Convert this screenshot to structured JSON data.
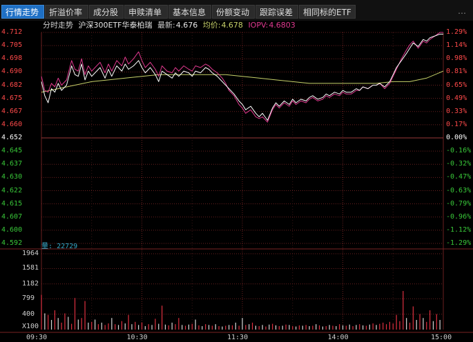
{
  "tabs": [
    {
      "label": "行情走势",
      "active": true
    },
    {
      "label": "折溢价率",
      "active": false
    },
    {
      "label": "成分股",
      "active": false
    },
    {
      "label": "申赎清单",
      "active": false
    },
    {
      "label": "基本信息",
      "active": false
    },
    {
      "label": "份额变动",
      "active": false
    },
    {
      "label": "跟踪误差",
      "active": false
    },
    {
      "label": "相同标的ETF",
      "active": false
    }
  ],
  "more_symbol": "…",
  "info": {
    "mode": "分时走势",
    "name": "沪深300ETF华泰柏瑞",
    "latest_label": "最新:",
    "latest_value": "4.676",
    "avg_label": "均价:",
    "avg_value": "4.678",
    "iopv_label": "IOPV:",
    "iopv_value": "4.6803"
  },
  "volume_label": "量:",
  "volume_value": "22729",
  "colors": {
    "up": "#ff4a4a",
    "down": "#39c839",
    "flat": "#ffffff",
    "price": "#ffffff",
    "iopv": "#e0398f",
    "avg": "#c8d26a",
    "grid": "#6b2020",
    "volume_up": "#e03040",
    "volume_down": "#d8d8d8"
  },
  "chart_data": {
    "type": "line",
    "price_axis": {
      "ticks": [
        "4.712",
        "4.705",
        "4.698",
        "4.690",
        "4.682",
        "4.675",
        "4.667",
        "4.660",
        "4.652",
        "4.645",
        "4.637",
        "4.630",
        "4.622",
        "4.615",
        "4.607",
        "4.600",
        "4.592"
      ],
      "prev_close": 4.652,
      "ylim": [
        4.592,
        4.712
      ]
    },
    "percent_axis": {
      "ticks": [
        "1.29%",
        "1.14%",
        "0.98%",
        "0.81%",
        "0.65%",
        "0.49%",
        "0.33%",
        "0.17%",
        "0.00%",
        "-0.16%",
        "-0.32%",
        "-0.47%",
        "-0.63%",
        "-0.79%",
        "-0.96%",
        "-1.12%",
        "-1.29%"
      ]
    },
    "time_ticks": [
      "09:30",
      "10:30",
      "11:30",
      "14:00",
      "15:00"
    ],
    "volume_axis": {
      "ticks": [
        "1964",
        "1581",
        "1182",
        "799",
        "400",
        "X100"
      ],
      "ylim": [
        0,
        1964
      ]
    },
    "series": [
      {
        "name": "最新",
        "t": [
          0,
          2,
          4,
          6,
          8,
          10,
          12,
          15,
          18,
          20,
          22,
          24,
          26,
          28,
          30,
          32,
          35,
          38,
          40,
          42,
          45,
          48,
          50,
          52,
          55,
          58,
          60,
          62,
          65,
          68,
          70,
          72,
          75,
          78,
          80,
          82,
          85,
          88,
          90,
          92,
          95,
          98,
          100,
          102,
          105,
          108,
          110,
          112,
          115,
          118,
          120,
          122,
          125,
          128,
          130,
          132,
          135,
          138,
          140,
          142,
          145,
          148,
          150,
          152,
          155,
          158,
          160,
          162,
          165,
          168,
          170,
          172,
          175,
          178,
          180,
          182,
          185,
          188,
          190,
          192,
          195,
          198,
          200,
          202,
          205,
          208,
          210,
          212,
          215,
          218,
          220,
          222,
          225,
          228,
          230,
          232,
          235,
          238,
          240
        ],
        "values": [
          4.684,
          4.676,
          4.672,
          4.68,
          4.678,
          4.683,
          4.679,
          4.682,
          4.693,
          4.688,
          4.687,
          4.694,
          4.685,
          4.69,
          4.687,
          4.689,
          4.692,
          4.686,
          4.691,
          4.687,
          4.693,
          4.69,
          4.694,
          4.691,
          4.693,
          4.696,
          4.692,
          4.689,
          4.692,
          4.688,
          4.684,
          4.69,
          4.688,
          4.686,
          4.689,
          4.687,
          4.69,
          4.689,
          4.687,
          4.69,
          4.689,
          4.692,
          4.691,
          4.689,
          4.687,
          4.684,
          4.682,
          4.68,
          4.677,
          4.673,
          4.671,
          4.668,
          4.67,
          4.666,
          4.664,
          4.666,
          4.662,
          4.669,
          4.672,
          4.67,
          4.673,
          4.671,
          4.674,
          4.672,
          4.674,
          4.673,
          4.675,
          4.676,
          4.674,
          4.675,
          4.677,
          4.676,
          4.678,
          4.677,
          4.679,
          4.678,
          4.678,
          4.68,
          4.679,
          4.681,
          4.68,
          4.682,
          4.682,
          4.683,
          4.681,
          4.684,
          4.688,
          4.692,
          4.696,
          4.7,
          4.703,
          4.706,
          4.704,
          4.708,
          4.707,
          4.709,
          4.71,
          4.711,
          4.711
        ]
      },
      {
        "name": "均价",
        "t": [
          0,
          10,
          20,
          30,
          40,
          50,
          60,
          70,
          80,
          90,
          100,
          110,
          120,
          130,
          140,
          150,
          160,
          170,
          180,
          190,
          200,
          210,
          220,
          230,
          240
        ],
        "values": [
          4.678,
          4.68,
          4.682,
          4.684,
          4.685,
          4.686,
          4.687,
          4.688,
          4.688,
          4.688,
          4.688,
          4.688,
          4.687,
          4.686,
          4.685,
          4.684,
          4.683,
          4.683,
          4.683,
          4.683,
          4.683,
          4.684,
          4.684,
          4.686,
          4.69
        ]
      },
      {
        "name": "IOPV",
        "t": [
          0,
          2,
          4,
          6,
          8,
          10,
          12,
          15,
          18,
          20,
          22,
          24,
          26,
          28,
          30,
          32,
          35,
          38,
          40,
          42,
          45,
          48,
          50,
          52,
          55,
          58,
          60,
          62,
          65,
          68,
          70,
          72,
          75,
          78,
          80,
          82,
          85,
          88,
          90,
          92,
          95,
          98,
          100,
          102,
          105,
          108,
          110,
          112,
          115,
          118,
          120,
          122,
          125,
          128,
          130,
          132,
          135,
          138,
          140,
          142,
          145,
          148,
          150,
          152,
          155,
          158,
          160,
          162,
          165,
          168,
          170,
          172,
          175,
          178,
          180,
          182,
          185,
          188,
          190,
          192,
          195,
          198,
          200,
          202,
          205,
          208,
          210,
          212,
          215,
          218,
          220,
          222,
          225,
          228,
          230,
          232,
          235,
          238,
          240
        ],
        "values": [
          4.687,
          4.679,
          4.678,
          4.683,
          4.681,
          4.686,
          4.682,
          4.685,
          4.696,
          4.691,
          4.69,
          4.697,
          4.688,
          4.693,
          4.69,
          4.692,
          4.695,
          4.689,
          4.694,
          4.69,
          4.696,
          4.693,
          4.698,
          4.694,
          4.697,
          4.701,
          4.696,
          4.692,
          4.695,
          4.691,
          4.687,
          4.693,
          4.69,
          4.689,
          4.692,
          4.69,
          4.693,
          4.691,
          4.69,
          4.693,
          4.692,
          4.694,
          4.693,
          4.691,
          4.689,
          4.686,
          4.683,
          4.679,
          4.676,
          4.671,
          4.669,
          4.666,
          4.668,
          4.664,
          4.663,
          4.664,
          4.661,
          4.668,
          4.671,
          4.669,
          4.672,
          4.67,
          4.673,
          4.671,
          4.673,
          4.672,
          4.674,
          4.675,
          4.673,
          4.674,
          4.676,
          4.675,
          4.677,
          4.676,
          4.678,
          4.677,
          4.677,
          4.679,
          4.679,
          4.681,
          4.68,
          4.682,
          4.682,
          4.683,
          4.68,
          4.683,
          4.687,
          4.691,
          4.697,
          4.702,
          4.705,
          4.707,
          4.703,
          4.707,
          4.706,
          4.708,
          4.71,
          4.712,
          4.712
        ]
      }
    ],
    "volume": {
      "t": [
        0,
        2,
        4,
        6,
        8,
        10,
        12,
        14,
        16,
        18,
        20,
        22,
        24,
        26,
        28,
        30,
        32,
        34,
        36,
        38,
        40,
        42,
        44,
        46,
        48,
        50,
        52,
        54,
        56,
        58,
        60,
        62,
        64,
        66,
        68,
        70,
        72,
        74,
        76,
        78,
        80,
        82,
        84,
        86,
        88,
        90,
        92,
        94,
        96,
        98,
        100,
        102,
        104,
        106,
        108,
        110,
        112,
        114,
        116,
        118,
        120,
        122,
        124,
        126,
        128,
        130,
        132,
        134,
        136,
        138,
        140,
        142,
        144,
        146,
        148,
        150,
        152,
        154,
        156,
        158,
        160,
        162,
        164,
        166,
        168,
        170,
        172,
        174,
        176,
        178,
        180,
        182,
        184,
        186,
        188,
        190,
        192,
        194,
        196,
        198,
        200,
        202,
        204,
        206,
        208,
        210,
        212,
        214,
        216,
        218,
        220,
        222,
        224,
        226,
        228,
        230,
        232,
        234,
        236,
        238
      ],
      "values": [
        900,
        420,
        380,
        250,
        500,
        300,
        180,
        420,
        330,
        150,
        820,
        260,
        300,
        740,
        180,
        200,
        260,
        140,
        180,
        120,
        160,
        300,
        140,
        120,
        220,
        160,
        380,
        140,
        200,
        120,
        180,
        90,
        140,
        120,
        280,
        150,
        620,
        130,
        110,
        180,
        140,
        300,
        120,
        100,
        130,
        150,
        260,
        110,
        90,
        140,
        120,
        100,
        140,
        90,
        80,
        100,
        120,
        110,
        180,
        100,
        300,
        120,
        140,
        180,
        100,
        90,
        120,
        80,
        130,
        150,
        110,
        90,
        100,
        130,
        120,
        90,
        80,
        110,
        100,
        120,
        90,
        100,
        140,
        110,
        80,
        90,
        120,
        100,
        90,
        140,
        110,
        100,
        130,
        90,
        120,
        140,
        110,
        100,
        130,
        160,
        120,
        150,
        180,
        140,
        200,
        160,
        380,
        220,
        1000,
        300,
        180,
        600,
        250,
        400,
        300,
        200,
        500,
        220,
        400,
        250
      ],
      "up": [
        1,
        0,
        1,
        0,
        1,
        0,
        1,
        1,
        0,
        1,
        1,
        0,
        1,
        1,
        0,
        1,
        0,
        1,
        0,
        1,
        1,
        0,
        1,
        0,
        1,
        0,
        1,
        0,
        1,
        0,
        1,
        0,
        1,
        0,
        1,
        0,
        1,
        0,
        1,
        0,
        1,
        1,
        0,
        1,
        0,
        1,
        0,
        1,
        0,
        1,
        0,
        1,
        0,
        1,
        0,
        1,
        0,
        1,
        0,
        1,
        0,
        1,
        0,
        1,
        0,
        1,
        0,
        1,
        0,
        1,
        0,
        1,
        0,
        1,
        0,
        1,
        0,
        1,
        0,
        1,
        0,
        1,
        0,
        1,
        0,
        1,
        0,
        1,
        0,
        1,
        0,
        1,
        0,
        1,
        0,
        1,
        0,
        1,
        0,
        1,
        0,
        1,
        1,
        1,
        1,
        1,
        1,
        1,
        1,
        0,
        1,
        1,
        0,
        1,
        0,
        1,
        1,
        0,
        1,
        0
      ]
    }
  }
}
